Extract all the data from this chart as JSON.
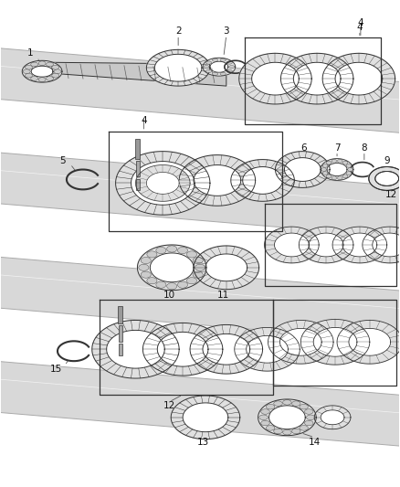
{
  "bg_color": "#ffffff",
  "line_color": "#333333",
  "gray_fill": "#e8e8e8",
  "dark_gray": "#888888",
  "shaft_color": "#cccccc",
  "label_fs": 7.0,
  "shaft_tube_color": "#bbbbbb",
  "shaft_tube_edge": "#999999"
}
